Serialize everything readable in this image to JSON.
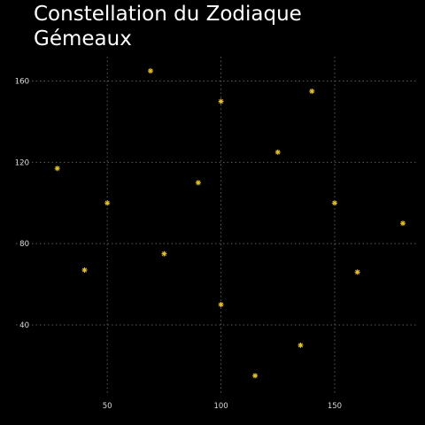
{
  "chart_data": {
    "type": "scatter",
    "title_lines": [
      "Constellation du Zodiaque",
      "Gémeaux"
    ],
    "xlabel": "",
    "ylabel": "",
    "xlim": [
      25,
      180
    ],
    "ylim": [
      6,
      172
    ],
    "x_ticks": [
      50,
      100,
      150
    ],
    "y_ticks": [
      40,
      80,
      120,
      160
    ],
    "grid": true,
    "marker": "asterisk",
    "marker_color": "#e6c229",
    "background": "#000000",
    "grid_color": "#5a5a5a",
    "points": [
      {
        "x": 28,
        "y": 117
      },
      {
        "x": 40,
        "y": 67
      },
      {
        "x": 50,
        "y": 100
      },
      {
        "x": 69,
        "y": 165
      },
      {
        "x": 75,
        "y": 75
      },
      {
        "x": 90,
        "y": 110
      },
      {
        "x": 100,
        "y": 150
      },
      {
        "x": 100,
        "y": 50
      },
      {
        "x": 115,
        "y": 15
      },
      {
        "x": 125,
        "y": 125
      },
      {
        "x": 135,
        "y": 30
      },
      {
        "x": 140,
        "y": 155
      },
      {
        "x": 150,
        "y": 100
      },
      {
        "x": 160,
        "y": 66
      },
      {
        "x": 180,
        "y": 90
      }
    ]
  }
}
